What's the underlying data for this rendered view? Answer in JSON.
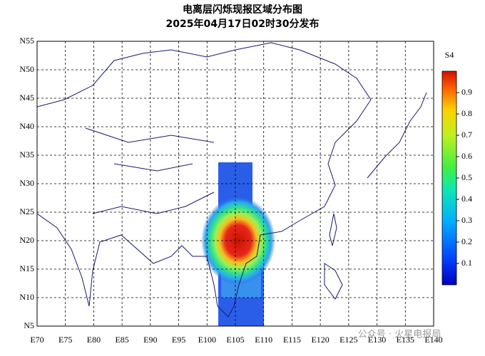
{
  "title": "电离层闪烁现报区域分布图",
  "subtitle": "2025年04月17日02时30分发布",
  "map": {
    "lat_labels": [
      "N55",
      "N50",
      "N45",
      "N40",
      "N35",
      "N30",
      "N25",
      "N20",
      "N15",
      "N10",
      "N5"
    ],
    "lon_labels": [
      "E70",
      "E75",
      "E80",
      "E85",
      "E90",
      "E95",
      "E100",
      "E105",
      "E110",
      "E115",
      "E120",
      "E125",
      "E130",
      "E135",
      "E140"
    ]
  },
  "colorbar": {
    "label": "S4",
    "lim": [
      0,
      1
    ],
    "ticks": [
      0.1,
      0.2,
      0.3,
      0.4,
      0.5,
      0.6,
      0.7,
      0.8,
      0.9
    ]
  },
  "watermark": "公众号 · 火星电报局"
}
